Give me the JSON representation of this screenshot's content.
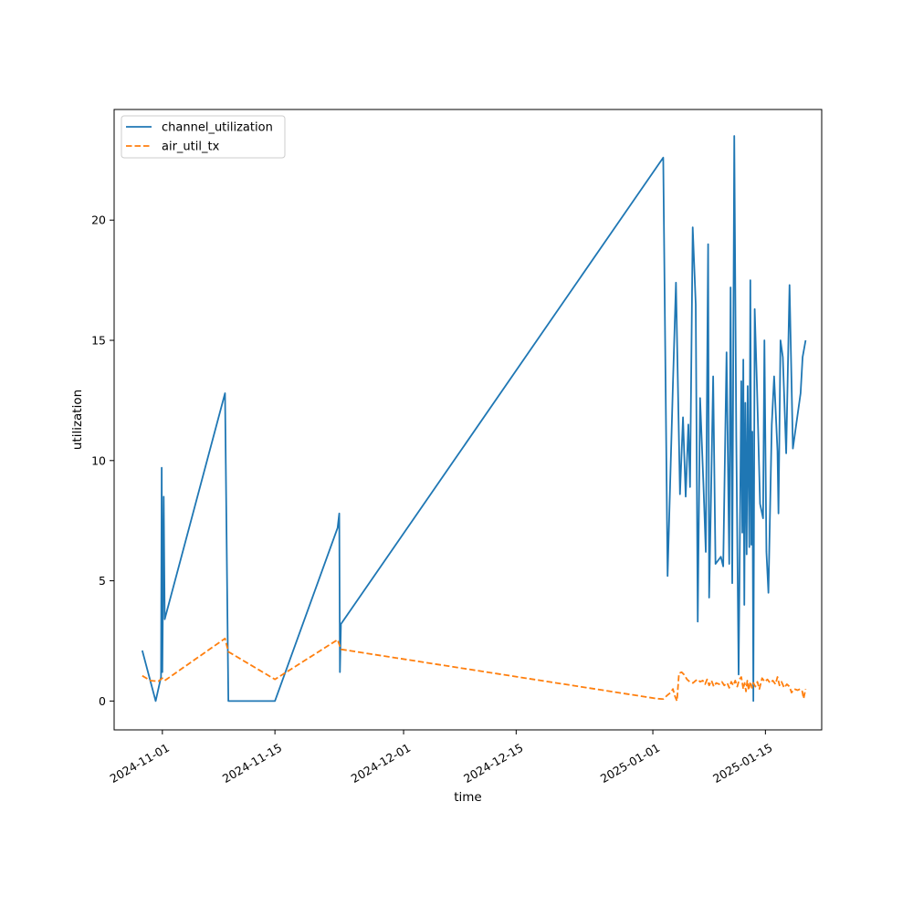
{
  "chart_data": {
    "type": "line",
    "title": "",
    "xlabel": "time",
    "ylabel": "utilization",
    "x_scale": "date",
    "xlim": [
      "2024-10-26",
      "2025-01-22"
    ],
    "ylim": [
      -1.2,
      24.6
    ],
    "x_ticks": [
      "2024-11-01",
      "2024-11-15",
      "2024-12-01",
      "2024-12-15",
      "2025-01-01",
      "2025-01-15"
    ],
    "y_ticks": [
      0,
      5,
      10,
      15,
      20
    ],
    "grid": false,
    "legend_position": "upper-left",
    "series": [
      {
        "name": "channel_utilization",
        "color": "#1f77b4",
        "style": "solid",
        "points": [
          [
            "2024-10-29T12:00",
            2.1
          ],
          [
            "2024-10-31T04:00",
            0.0
          ],
          [
            "2024-10-31T20:00",
            1.0
          ],
          [
            "2024-10-31T22:00",
            9.7
          ],
          [
            "2024-11-01T00:00",
            1.2
          ],
          [
            "2024-11-01T04:00",
            8.5
          ],
          [
            "2024-11-01T07:00",
            3.4
          ],
          [
            "2024-11-08T19:00",
            12.8
          ],
          [
            "2024-11-09T05:00",
            0.0
          ],
          [
            "2024-11-15T00:00",
            0.0
          ],
          [
            "2024-11-22T19:00",
            7.2
          ],
          [
            "2024-11-23T00:00",
            7.8
          ],
          [
            "2024-11-23T02:00",
            1.2
          ],
          [
            "2024-11-23T05:00",
            3.2
          ],
          [
            "2025-01-02T07:00",
            22.6
          ],
          [
            "2025-01-02T20:00",
            5.2
          ],
          [
            "2025-01-03T12:00",
            13.2
          ],
          [
            "2025-01-03T21:00",
            17.4
          ],
          [
            "2025-01-04T09:00",
            8.6
          ],
          [
            "2025-01-04T18:00",
            11.8
          ],
          [
            "2025-01-05T02:00",
            8.5
          ],
          [
            "2025-01-05T10:00",
            11.5
          ],
          [
            "2025-01-05T15:00",
            8.9
          ],
          [
            "2025-01-05T23:00",
            19.7
          ],
          [
            "2025-01-06T08:00",
            16.5
          ],
          [
            "2025-01-06T14:00",
            3.3
          ],
          [
            "2025-01-06T21:00",
            12.6
          ],
          [
            "2025-01-07T07:00",
            9.0
          ],
          [
            "2025-01-07T14:00",
            6.2
          ],
          [
            "2025-01-07T21:00",
            19.0
          ],
          [
            "2025-01-08T00:00",
            4.3
          ],
          [
            "2025-01-08T05:00",
            8.0
          ],
          [
            "2025-01-08T12:00",
            13.5
          ],
          [
            "2025-01-08T19:00",
            5.7
          ],
          [
            "2025-01-09T11:00",
            6.0
          ],
          [
            "2025-01-09T18:00",
            5.6
          ],
          [
            "2025-01-10T04:00",
            14.5
          ],
          [
            "2025-01-10T12:00",
            5.7
          ],
          [
            "2025-01-10T16:00",
            17.2
          ],
          [
            "2025-01-10T21:00",
            4.9
          ],
          [
            "2025-01-11T03:00",
            23.5
          ],
          [
            "2025-01-11T09:00",
            11.0
          ],
          [
            "2025-01-11T16:00",
            1.1
          ],
          [
            "2025-01-12T00:00",
            13.3
          ],
          [
            "2025-01-12T03:00",
            7.0
          ],
          [
            "2025-01-12T06:00",
            14.2
          ],
          [
            "2025-01-12T09:00",
            4.0
          ],
          [
            "2025-01-12T12:00",
            12.4
          ],
          [
            "2025-01-12T16:00",
            6.1
          ],
          [
            "2025-01-12T19:00",
            13.1
          ],
          [
            "2025-01-13T00:00",
            6.4
          ],
          [
            "2025-01-13T03:00",
            17.5
          ],
          [
            "2025-01-13T06:00",
            6.5
          ],
          [
            "2025-01-13T09:00",
            11.2
          ],
          [
            "2025-01-13T12:00",
            0.0
          ],
          [
            "2025-01-13T16:00",
            16.3
          ],
          [
            "2025-01-13T23:00",
            13.0
          ],
          [
            "2025-01-14T08:00",
            8.2
          ],
          [
            "2025-01-14T17:00",
            7.6
          ],
          [
            "2025-01-14T21:00",
            15.0
          ],
          [
            "2025-01-15T03:00",
            6.2
          ],
          [
            "2025-01-15T09:00",
            4.5
          ],
          [
            "2025-01-15T19:00",
            11.5
          ],
          [
            "2025-01-16T02:00",
            13.5
          ],
          [
            "2025-01-16T12:00",
            10.4
          ],
          [
            "2025-01-16T15:00",
            7.8
          ],
          [
            "2025-01-16T21:00",
            15.0
          ],
          [
            "2025-01-17T04:00",
            14.3
          ],
          [
            "2025-01-17T14:00",
            10.3
          ],
          [
            "2025-01-18T00:00",
            17.3
          ],
          [
            "2025-01-18T10:00",
            10.5
          ],
          [
            "2025-01-19T09:00",
            12.8
          ],
          [
            "2025-01-19T15:00",
            14.3
          ],
          [
            "2025-01-20T00:00",
            15.0
          ]
        ]
      },
      {
        "name": "air_util_tx",
        "color": "#ff7f0e",
        "style": "dashed",
        "points": [
          [
            "2024-10-29T12:00",
            1.05
          ],
          [
            "2024-10-30T12:00",
            0.85
          ],
          [
            "2024-10-31T12:00",
            0.82
          ],
          [
            "2024-11-01T00:00",
            0.95
          ],
          [
            "2024-11-01T07:00",
            0.85
          ],
          [
            "2024-11-08T19:00",
            2.6
          ],
          [
            "2024-11-09T05:00",
            2.05
          ],
          [
            "2024-11-15T00:00",
            0.9
          ],
          [
            "2024-11-22T19:00",
            2.55
          ],
          [
            "2024-11-23T05:00",
            2.15
          ],
          [
            "2025-01-01T12:00",
            0.1
          ],
          [
            "2025-01-02T07:00",
            0.08
          ],
          [
            "2025-01-02T20:00",
            0.25
          ],
          [
            "2025-01-03T05:00",
            0.35
          ],
          [
            "2025-01-03T12:00",
            0.5
          ],
          [
            "2025-01-03T18:00",
            0.2
          ],
          [
            "2025-01-04T00:00",
            0.0
          ],
          [
            "2025-01-04T06:00",
            1.15
          ],
          [
            "2025-01-04T14:00",
            1.2
          ],
          [
            "2025-01-04T21:00",
            1.1
          ],
          [
            "2025-01-05T06:00",
            0.9
          ],
          [
            "2025-01-05T14:00",
            0.8
          ],
          [
            "2025-01-06T00:00",
            0.75
          ],
          [
            "2025-01-06T08:00",
            0.85
          ],
          [
            "2025-01-06T14:00",
            0.9
          ],
          [
            "2025-01-06T21:00",
            0.8
          ],
          [
            "2025-01-07T05:00",
            0.85
          ],
          [
            "2025-01-07T12:00",
            0.7
          ],
          [
            "2025-01-07T18:00",
            0.9
          ],
          [
            "2025-01-08T00:00",
            0.65
          ],
          [
            "2025-01-08T07:00",
            0.85
          ],
          [
            "2025-01-08T14:00",
            0.6
          ],
          [
            "2025-01-08T21:00",
            0.75
          ],
          [
            "2025-01-09T06:00",
            0.7
          ],
          [
            "2025-01-09T14:00",
            0.8
          ],
          [
            "2025-01-09T21:00",
            0.65
          ],
          [
            "2025-01-10T06:00",
            0.75
          ],
          [
            "2025-01-10T12:00",
            0.55
          ],
          [
            "2025-01-10T18:00",
            0.8
          ],
          [
            "2025-01-11T00:00",
            0.65
          ],
          [
            "2025-01-11T06:00",
            0.85
          ],
          [
            "2025-01-11T12:00",
            0.6
          ],
          [
            "2025-01-11T18:00",
            0.9
          ],
          [
            "2025-01-12T00:00",
            1.0
          ],
          [
            "2025-01-12T06:00",
            0.5
          ],
          [
            "2025-01-12T10:00",
            0.75
          ],
          [
            "2025-01-12T14:00",
            0.4
          ],
          [
            "2025-01-12T18:00",
            0.85
          ],
          [
            "2025-01-12T22:00",
            0.45
          ],
          [
            "2025-01-13T03:00",
            0.8
          ],
          [
            "2025-01-13T08:00",
            0.55
          ],
          [
            "2025-01-13T12:00",
            0.75
          ],
          [
            "2025-01-13T18:00",
            0.6
          ],
          [
            "2025-01-14T00:00",
            0.8
          ],
          [
            "2025-01-14T06:00",
            0.5
          ],
          [
            "2025-01-14T14:00",
            0.95
          ],
          [
            "2025-01-14T22:00",
            0.8
          ],
          [
            "2025-01-15T06:00",
            0.9
          ],
          [
            "2025-01-15T14:00",
            0.75
          ],
          [
            "2025-01-15T22:00",
            0.85
          ],
          [
            "2025-01-16T06:00",
            0.7
          ],
          [
            "2025-01-16T12:00",
            1.0
          ],
          [
            "2025-01-16T18:00",
            0.65
          ],
          [
            "2025-01-17T00:00",
            0.8
          ],
          [
            "2025-01-17T08:00",
            0.55
          ],
          [
            "2025-01-17T16:00",
            0.7
          ],
          [
            "2025-01-18T00:00",
            0.6
          ],
          [
            "2025-01-18T06:00",
            0.35
          ],
          [
            "2025-01-18T14:00",
            0.5
          ],
          [
            "2025-01-19T00:00",
            0.45
          ],
          [
            "2025-01-19T08:00",
            0.5
          ],
          [
            "2025-01-19T14:00",
            0.4
          ],
          [
            "2025-01-19T18:00",
            0.1
          ],
          [
            "2025-01-20T00:00",
            0.5
          ]
        ]
      }
    ]
  }
}
